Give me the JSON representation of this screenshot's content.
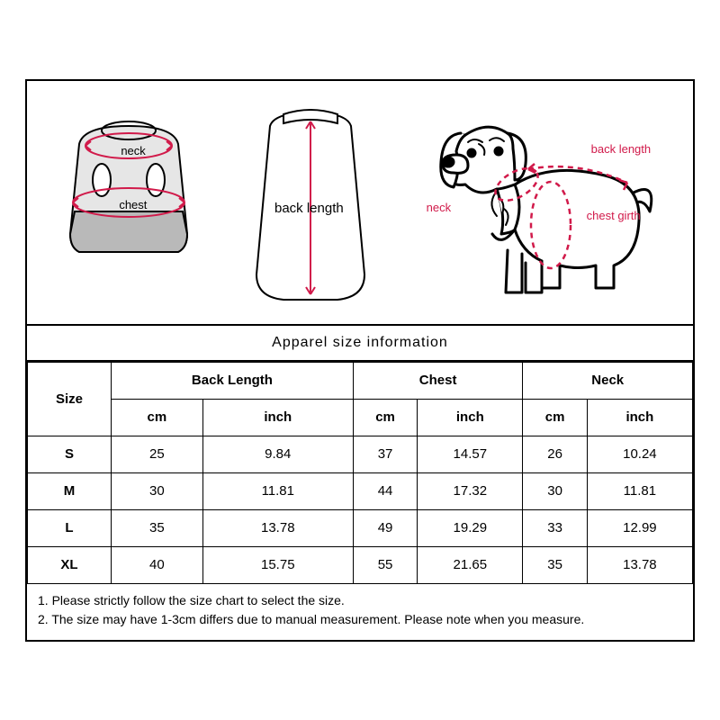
{
  "diagram_labels": {
    "front_neck": "neck",
    "front_chest": "chest",
    "back_length": "back length",
    "dog_neck": "neck",
    "dog_back": "back length",
    "dog_chest": "chest girth"
  },
  "title": "Apparel  size  information",
  "table": {
    "size_header": "Size",
    "groups": [
      "Back Length",
      "Chest",
      "Neck"
    ],
    "unit_cm": "cm",
    "unit_inch": "inch",
    "rows": [
      {
        "size": "S",
        "bl_cm": "25",
        "bl_in": "9.84",
        "c_cm": "37",
        "c_in": "14.57",
        "n_cm": "26",
        "n_in": "10.24"
      },
      {
        "size": "M",
        "bl_cm": "30",
        "bl_in": "11.81",
        "c_cm": "44",
        "c_in": "17.32",
        "n_cm": "30",
        "n_in": "11.81"
      },
      {
        "size": "L",
        "bl_cm": "35",
        "bl_in": "13.78",
        "c_cm": "49",
        "c_in": "19.29",
        "n_cm": "33",
        "n_in": "12.99"
      },
      {
        "size": "XL",
        "bl_cm": "40",
        "bl_in": "15.75",
        "c_cm": "55",
        "c_in": "21.65",
        "n_cm": "35",
        "n_in": "13.78"
      }
    ]
  },
  "notes": {
    "n1": "1. Please strictly follow the size chart  to select the size.",
    "n2": "2. The size may have 1-3cm differs due to manual measurement. Please note when you measure."
  },
  "colors": {
    "accent": "#d11a4a",
    "shirt_fill": "#b9b9b9",
    "shirt_top": "#e6e6e6",
    "border": "#000000"
  }
}
